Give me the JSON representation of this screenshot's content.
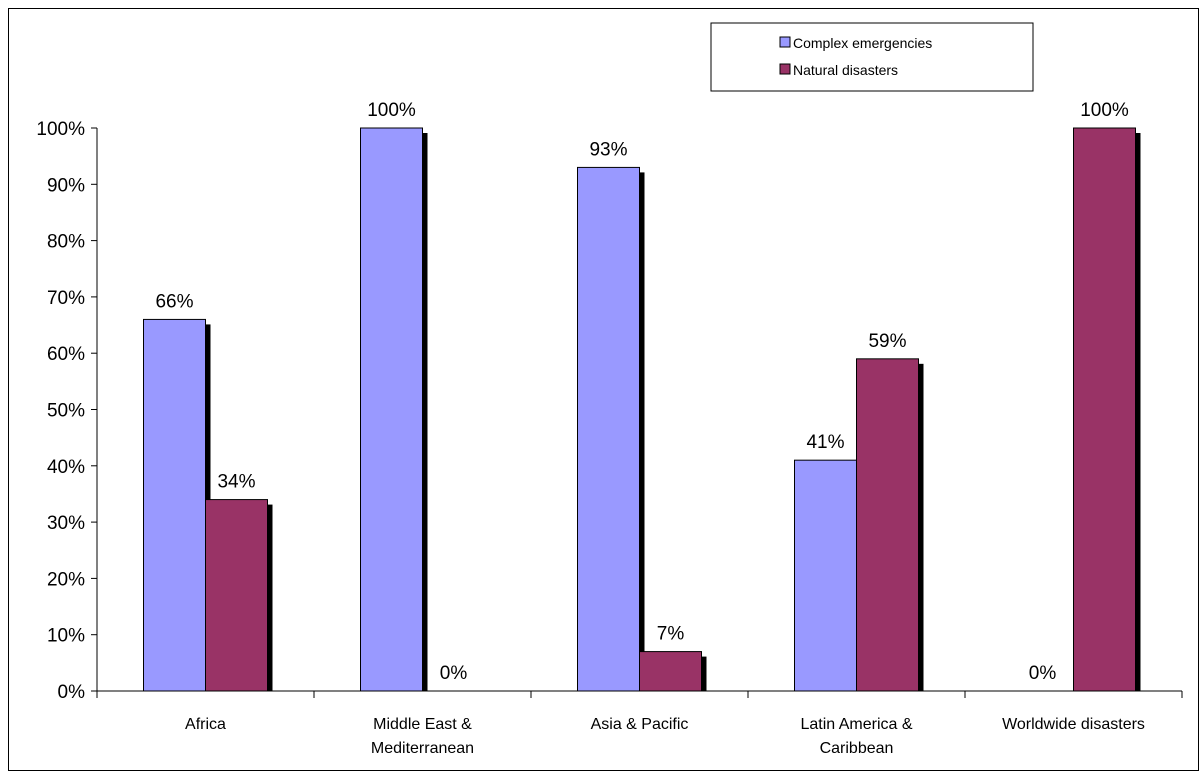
{
  "chart_data": {
    "type": "bar",
    "title": "",
    "xlabel": "",
    "ylabel": "",
    "ylim": [
      0,
      100
    ],
    "y_ticks": [
      "0%",
      "10%",
      "20%",
      "30%",
      "40%",
      "50%",
      "60%",
      "70%",
      "80%",
      "90%",
      "100%"
    ],
    "categories": [
      [
        "Africa"
      ],
      [
        "Middle East &",
        "Mediterranean"
      ],
      [
        "Asia & Pacific"
      ],
      [
        "Latin America &",
        "Caribbean"
      ],
      [
        "Worldwide disasters"
      ]
    ],
    "series": [
      {
        "name": "Complex emergencies",
        "color": "#9999ff",
        "values": [
          66,
          100,
          93,
          41,
          0
        ],
        "labels": [
          "66%",
          "100%",
          "93%",
          "41%",
          "0%"
        ]
      },
      {
        "name": "Natural disasters",
        "color": "#993366",
        "values": [
          34,
          0,
          7,
          59,
          100
        ],
        "labels": [
          "34%",
          "0%",
          "7%",
          "59%",
          "100%"
        ]
      }
    ],
    "grid": false,
    "legend_position": "top-right",
    "shadow": true
  }
}
